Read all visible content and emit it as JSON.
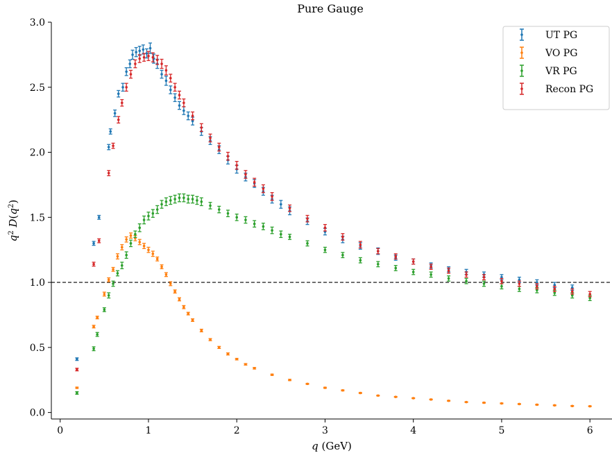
{
  "chart_data": {
    "type": "scatter",
    "title": "Pure Gauge",
    "xlabel": "q (GeV)",
    "ylabel": "q² D(q²)",
    "xlim": [
      -0.1,
      6.25
    ],
    "ylim": [
      -0.05,
      3.0
    ],
    "xticks": [
      0,
      1,
      2,
      3,
      4,
      5,
      6
    ],
    "yticks": [
      0.0,
      0.5,
      1.0,
      1.5,
      2.0,
      2.5,
      3.0
    ],
    "xtick_labels": [
      "0",
      "1",
      "2",
      "3",
      "4",
      "5",
      "6"
    ],
    "ytick_labels": [
      "0.0",
      "0.5",
      "1.0",
      "1.5",
      "2.0",
      "2.5",
      "3.0"
    ],
    "reference_line": {
      "y": 1.0,
      "style": "dashed"
    },
    "legend_position": "top-right",
    "grid": false,
    "series": [
      {
        "name": "UT PG",
        "color": "#1f77b4",
        "x": [
          0.19,
          0.38,
          0.44,
          0.55,
          0.57,
          0.62,
          0.66,
          0.71,
          0.75,
          0.79,
          0.82,
          0.86,
          0.9,
          0.94,
          0.98,
          1.02,
          1.06,
          1.1,
          1.15,
          1.2,
          1.25,
          1.3,
          1.35,
          1.4,
          1.45,
          1.5,
          1.6,
          1.7,
          1.8,
          1.9,
          2.0,
          2.1,
          2.2,
          2.3,
          2.4,
          2.5,
          2.6,
          2.8,
          3.0,
          3.2,
          3.4,
          3.6,
          3.8,
          4.0,
          4.2,
          4.4,
          4.6,
          4.8,
          5.0,
          5.2,
          5.4,
          5.6,
          5.8
        ],
        "y": [
          0.41,
          1.3,
          1.5,
          2.04,
          2.16,
          2.3,
          2.45,
          2.5,
          2.62,
          2.68,
          2.75,
          2.77,
          2.78,
          2.79,
          2.76,
          2.8,
          2.72,
          2.68,
          2.6,
          2.55,
          2.48,
          2.42,
          2.36,
          2.32,
          2.28,
          2.24,
          2.16,
          2.09,
          2.02,
          1.94,
          1.87,
          1.81,
          1.76,
          1.7,
          1.64,
          1.6,
          1.55,
          1.47,
          1.39,
          1.33,
          1.28,
          1.24,
          1.19,
          1.16,
          1.13,
          1.1,
          1.08,
          1.06,
          1.04,
          1.02,
          1.0,
          0.98,
          0.96
        ],
        "err": [
          0.01,
          0.015,
          0.015,
          0.02,
          0.02,
          0.025,
          0.025,
          0.03,
          0.03,
          0.03,
          0.035,
          0.035,
          0.035,
          0.035,
          0.035,
          0.04,
          0.035,
          0.035,
          0.03,
          0.035,
          0.03,
          0.03,
          0.03,
          0.03,
          0.03,
          0.03,
          0.03,
          0.03,
          0.03,
          0.03,
          0.03,
          0.03,
          0.03,
          0.03,
          0.03,
          0.03,
          0.03,
          0.025,
          0.025,
          0.025,
          0.025,
          0.025,
          0.02,
          0.02,
          0.02,
          0.02,
          0.02,
          0.02,
          0.02,
          0.02,
          0.02,
          0.02,
          0.02
        ]
      },
      {
        "name": "VO PG",
        "color": "#ff7f0e",
        "x": [
          0.19,
          0.38,
          0.42,
          0.5,
          0.55,
          0.6,
          0.65,
          0.7,
          0.75,
          0.8,
          0.85,
          0.9,
          0.95,
          1.0,
          1.05,
          1.1,
          1.15,
          1.2,
          1.25,
          1.3,
          1.35,
          1.4,
          1.45,
          1.5,
          1.6,
          1.7,
          1.8,
          1.9,
          2.0,
          2.1,
          2.2,
          2.4,
          2.6,
          2.8,
          3.0,
          3.2,
          3.4,
          3.6,
          3.8,
          4.0,
          4.2,
          4.4,
          4.6,
          4.8,
          5.0,
          5.2,
          5.4,
          5.6,
          5.8,
          6.0
        ],
        "y": [
          0.19,
          0.66,
          0.73,
          0.91,
          1.02,
          1.1,
          1.2,
          1.27,
          1.33,
          1.36,
          1.34,
          1.31,
          1.28,
          1.25,
          1.22,
          1.18,
          1.12,
          1.06,
          0.99,
          0.93,
          0.87,
          0.81,
          0.76,
          0.71,
          0.63,
          0.56,
          0.5,
          0.45,
          0.41,
          0.37,
          0.34,
          0.29,
          0.25,
          0.22,
          0.19,
          0.17,
          0.15,
          0.13,
          0.12,
          0.11,
          0.1,
          0.09,
          0.08,
          0.075,
          0.07,
          0.065,
          0.06,
          0.055,
          0.05,
          0.048
        ],
        "err": [
          0.005,
          0.01,
          0.01,
          0.015,
          0.015,
          0.015,
          0.02,
          0.02,
          0.02,
          0.02,
          0.02,
          0.02,
          0.02,
          0.02,
          0.02,
          0.015,
          0.015,
          0.015,
          0.015,
          0.012,
          0.012,
          0.012,
          0.01,
          0.01,
          0.01,
          0.008,
          0.008,
          0.008,
          0.006,
          0.006,
          0.006,
          0.005,
          0.005,
          0.004,
          0.004,
          0.004,
          0.004,
          0.003,
          0.003,
          0.003,
          0.003,
          0.003,
          0.003,
          0.003,
          0.003,
          0.003,
          0.003,
          0.003,
          0.003,
          0.003
        ]
      },
      {
        "name": "VR PG",
        "color": "#2ca02c",
        "x": [
          0.19,
          0.38,
          0.42,
          0.5,
          0.55,
          0.6,
          0.65,
          0.7,
          0.75,
          0.8,
          0.85,
          0.9,
          0.95,
          1.0,
          1.05,
          1.1,
          1.15,
          1.2,
          1.25,
          1.3,
          1.35,
          1.4,
          1.45,
          1.5,
          1.55,
          1.6,
          1.7,
          1.8,
          1.9,
          2.0,
          2.1,
          2.2,
          2.3,
          2.4,
          2.5,
          2.6,
          2.8,
          3.0,
          3.2,
          3.4,
          3.6,
          3.8,
          4.0,
          4.2,
          4.4,
          4.6,
          4.8,
          5.0,
          5.2,
          5.4,
          5.6,
          5.8,
          6.0
        ],
        "y": [
          0.15,
          0.49,
          0.6,
          0.79,
          0.9,
          0.99,
          1.07,
          1.13,
          1.21,
          1.3,
          1.37,
          1.42,
          1.48,
          1.51,
          1.53,
          1.56,
          1.6,
          1.62,
          1.63,
          1.64,
          1.65,
          1.65,
          1.64,
          1.64,
          1.63,
          1.62,
          1.59,
          1.56,
          1.53,
          1.5,
          1.48,
          1.45,
          1.43,
          1.4,
          1.37,
          1.35,
          1.3,
          1.25,
          1.21,
          1.17,
          1.14,
          1.11,
          1.08,
          1.06,
          1.03,
          1.01,
          0.99,
          0.97,
          0.95,
          0.94,
          0.92,
          0.9,
          0.88
        ],
        "err": [
          0.01,
          0.015,
          0.015,
          0.015,
          0.02,
          0.02,
          0.02,
          0.025,
          0.025,
          0.025,
          0.025,
          0.03,
          0.03,
          0.03,
          0.03,
          0.03,
          0.03,
          0.03,
          0.03,
          0.03,
          0.03,
          0.03,
          0.03,
          0.03,
          0.03,
          0.03,
          0.025,
          0.025,
          0.025,
          0.025,
          0.025,
          0.025,
          0.025,
          0.025,
          0.025,
          0.02,
          0.02,
          0.02,
          0.02,
          0.02,
          0.02,
          0.02,
          0.02,
          0.02,
          0.02,
          0.02,
          0.02,
          0.02,
          0.02,
          0.02,
          0.02,
          0.02,
          0.02
        ]
      },
      {
        "name": "Recon PG",
        "color": "#d62728",
        "x": [
          0.19,
          0.38,
          0.44,
          0.55,
          0.6,
          0.66,
          0.7,
          0.75,
          0.8,
          0.85,
          0.9,
          0.95,
          1.0,
          1.05,
          1.1,
          1.15,
          1.2,
          1.25,
          1.3,
          1.35,
          1.4,
          1.5,
          1.6,
          1.7,
          1.8,
          1.9,
          2.0,
          2.1,
          2.2,
          2.3,
          2.4,
          2.6,
          2.8,
          3.0,
          3.2,
          3.4,
          3.6,
          3.8,
          4.0,
          4.2,
          4.4,
          4.6,
          4.8,
          5.0,
          5.2,
          5.4,
          5.6,
          5.8,
          6.0
        ],
        "y": [
          0.33,
          1.14,
          1.32,
          1.84,
          2.05,
          2.25,
          2.38,
          2.5,
          2.6,
          2.68,
          2.72,
          2.73,
          2.74,
          2.73,
          2.71,
          2.68,
          2.63,
          2.57,
          2.5,
          2.44,
          2.38,
          2.28,
          2.19,
          2.11,
          2.04,
          1.97,
          1.9,
          1.83,
          1.77,
          1.72,
          1.66,
          1.57,
          1.49,
          1.42,
          1.35,
          1.29,
          1.24,
          1.2,
          1.16,
          1.12,
          1.09,
          1.06,
          1.04,
          1.01,
          0.99,
          0.97,
          0.95,
          0.93,
          0.91
        ],
        "err": [
          0.01,
          0.015,
          0.015,
          0.02,
          0.02,
          0.025,
          0.025,
          0.03,
          0.03,
          0.03,
          0.03,
          0.03,
          0.035,
          0.035,
          0.035,
          0.035,
          0.035,
          0.03,
          0.03,
          0.03,
          0.03,
          0.03,
          0.03,
          0.03,
          0.03,
          0.03,
          0.03,
          0.03,
          0.03,
          0.03,
          0.03,
          0.025,
          0.025,
          0.025,
          0.025,
          0.025,
          0.02,
          0.02,
          0.02,
          0.02,
          0.02,
          0.02,
          0.02,
          0.02,
          0.02,
          0.02,
          0.02,
          0.02,
          0.02
        ]
      }
    ]
  }
}
